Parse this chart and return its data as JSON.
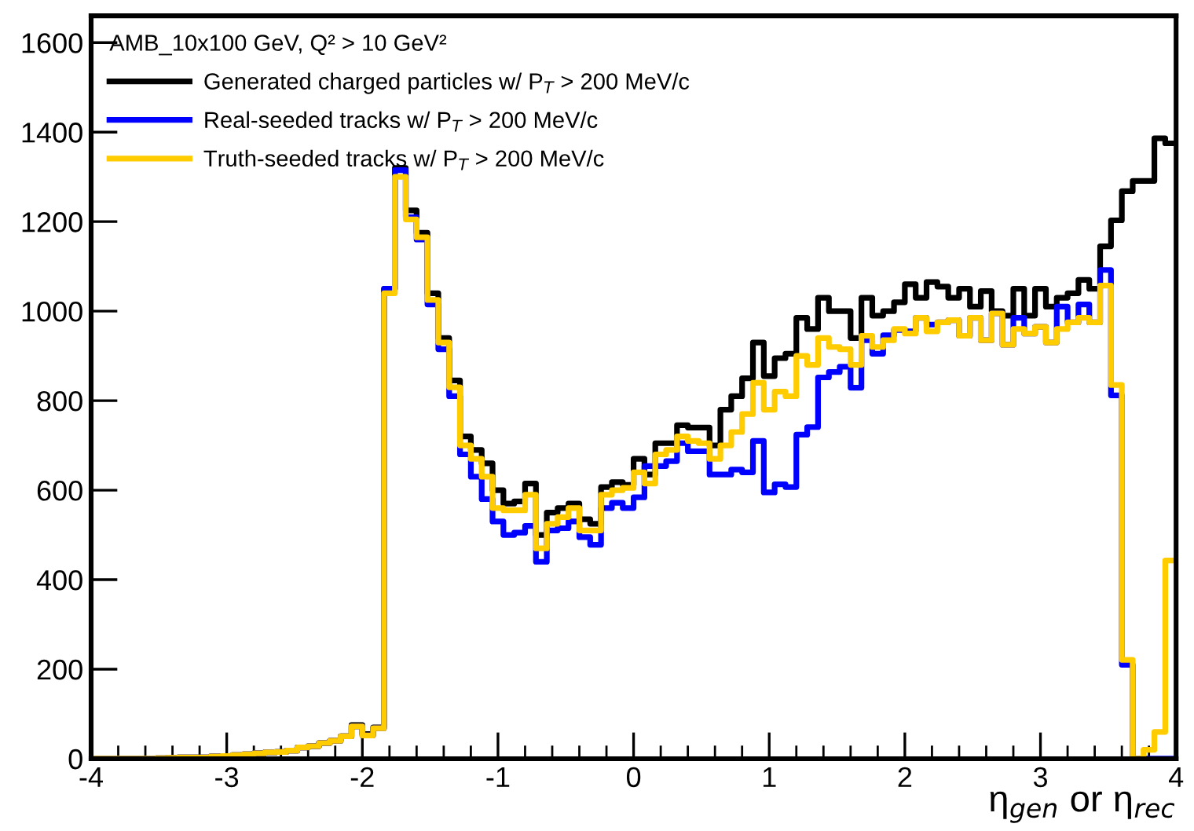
{
  "chart_data": {
    "type": "histogram",
    "xlabel": "η$_{gen}$ or η$_{rec}$",
    "legend_title": "AMB_10x100 GeV, Q² > 10 GeV²",
    "legend": "top left",
    "grid": false,
    "line_style": "solid",
    "xlim": [
      -4,
      4
    ],
    "ylim": [
      0,
      1660
    ],
    "xticks": [
      -4,
      -3,
      -2,
      -1,
      0,
      1,
      2,
      3,
      4
    ],
    "yticks": [
      0,
      200,
      400,
      600,
      800,
      1000,
      1200,
      1400,
      1600
    ],
    "bins": [
      -4,
      -3.92,
      -3.84,
      -3.76,
      -3.68,
      -3.6,
      -3.52,
      -3.44,
      -3.36,
      -3.28,
      -3.2,
      -3.12,
      -3.04,
      -2.96,
      -2.88,
      -2.8,
      -2.72,
      -2.64,
      -2.56,
      -2.48,
      -2.4,
      -2.32,
      -2.24,
      -2.16,
      -2.08,
      -2,
      -1.92,
      -1.84,
      -1.76,
      -1.68,
      -1.6,
      -1.52,
      -1.44,
      -1.36,
      -1.28,
      -1.2,
      -1.12,
      -1.04,
      -0.96,
      -0.88,
      -0.8,
      -0.72,
      -0.64,
      -0.56,
      -0.48,
      -0.4,
      -0.32,
      -0.24,
      -0.16,
      -0.08,
      0,
      0.08,
      0.16,
      0.24,
      0.32,
      0.4,
      0.48,
      0.56,
      0.64,
      0.72,
      0.8,
      0.88,
      0.96,
      1.04,
      1.12,
      1.2,
      1.28,
      1.36,
      1.44,
      1.52,
      1.6,
      1.68,
      1.76,
      1.84,
      1.92,
      2,
      2.08,
      2.16,
      2.24,
      2.32,
      2.4,
      2.48,
      2.56,
      2.64,
      2.72,
      2.8,
      2.88,
      2.96,
      3.04,
      3.12,
      3.2,
      3.28,
      3.36,
      3.44,
      3.52,
      3.6,
      3.68,
      3.76,
      3.84,
      3.92,
      4
    ],
    "series": [
      {
        "name": "Generated charged particles w/ P$_{T}$ > 200 MeV/c",
        "color": "#000000",
        "values": [
          0,
          0,
          0,
          0,
          0,
          0,
          1,
          2,
          3,
          3,
          3,
          5,
          6,
          8,
          10,
          12,
          14,
          15,
          18,
          25,
          28,
          35,
          40,
          50,
          75,
          55,
          70,
          1050,
          1320,
          1225,
          1175,
          1040,
          940,
          845,
          720,
          690,
          660,
          600,
          570,
          575,
          615,
          500,
          550,
          560,
          570,
          535,
          525,
          607,
          618,
          612,
          670,
          635,
          705,
          705,
          745,
          740,
          740,
          700,
          780,
          810,
          850,
          930,
          855,
          895,
          905,
          985,
          960,
          1030,
          1000,
          1000,
          940,
          1030,
          990,
          1000,
          1020,
          1060,
          1030,
          1065,
          1055,
          1030,
          1050,
          1010,
          1045,
          1000,
          990,
          1050,
          990,
          1050,
          1010,
          1030,
          1040,
          1070,
          1050,
          1145,
          1203,
          1268,
          1291,
          1291,
          1386,
          1375
        ]
      },
      {
        "name": "Real-seeded tracks w/ P$_{T}$ > 200 MeV/c",
        "color": "#0000ff",
        "values": [
          0,
          0,
          0,
          0,
          0,
          0,
          1,
          2,
          3,
          3,
          3,
          5,
          6,
          8,
          10,
          12,
          14,
          15,
          18,
          25,
          28,
          35,
          40,
          50,
          72,
          52,
          68,
          1050,
          1315,
          1210,
          1160,
          1015,
          915,
          810,
          680,
          630,
          580,
          530,
          500,
          505,
          520,
          440,
          510,
          515,
          530,
          495,
          478,
          560,
          572,
          560,
          584,
          654,
          654,
          665,
          705,
          687,
          687,
          635,
          635,
          646,
          640,
          710,
          595,
          613,
          607,
          724,
          741,
          852,
          864,
          876,
          829,
          935,
          905,
          946,
          958,
          955,
          985,
          970,
          975,
          980,
          945,
          985,
          935,
          995,
          925,
          985,
          950,
          965,
          930,
          1010,
          975,
          1015,
          975,
          1092,
          812,
          210,
          0,
          0,
          0,
          0
        ]
      },
      {
        "name": "Truth-seeded tracks w/ P$_{T}$ > 200 MeV/c",
        "color": "#ffcc00",
        "values": [
          0,
          0,
          0,
          0,
          0,
          0,
          1,
          2,
          3,
          3,
          3,
          5,
          6,
          8,
          10,
          12,
          14,
          15,
          18,
          25,
          28,
          35,
          40,
          50,
          72,
          52,
          68,
          1040,
          1300,
          1205,
          1165,
          1025,
          930,
          830,
          700,
          670,
          630,
          560,
          555,
          555,
          590,
          470,
          525,
          540,
          560,
          510,
          510,
          590,
          600,
          605,
          640,
          615,
          680,
          690,
          720,
          710,
          705,
          670,
          700,
          730,
          770,
          840,
          780,
          820,
          810,
          900,
          880,
          940,
          920,
          915,
          880,
          945,
          920,
          935,
          960,
          950,
          985,
          955,
          975,
          980,
          945,
          985,
          935,
          995,
          925,
          960,
          950,
          965,
          930,
          960,
          975,
          985,
          975,
          1057,
          835,
          221,
          0,
          20,
          60,
          443
        ]
      }
    ]
  }
}
